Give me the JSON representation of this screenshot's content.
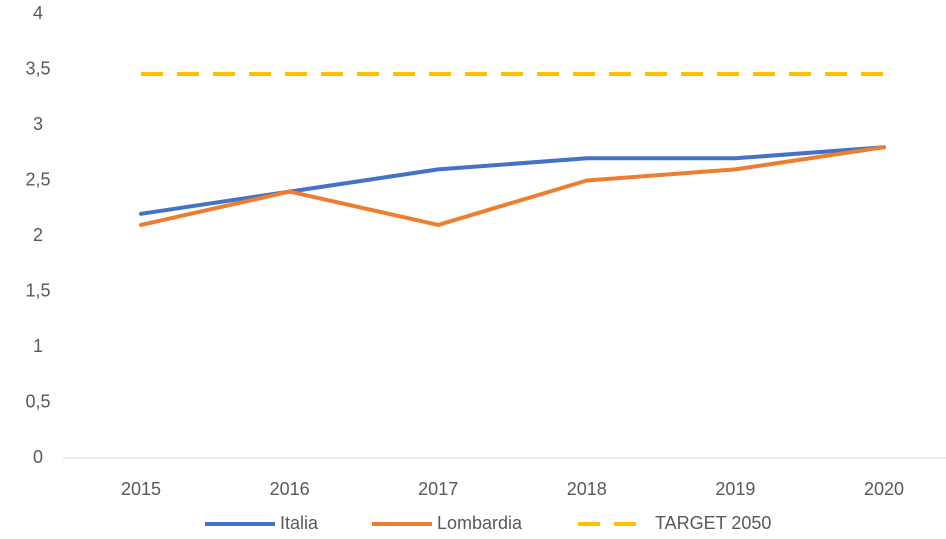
{
  "chart_data": {
    "type": "line",
    "categories": [
      "2015",
      "2016",
      "2017",
      "2018",
      "2019",
      "2020"
    ],
    "series": [
      {
        "name": "Italia",
        "color": "#4472c4",
        "values": [
          2.2,
          2.4,
          2.6,
          2.7,
          2.7,
          2.8
        ]
      },
      {
        "name": "Lombardia",
        "color": "#ed7d31",
        "values": [
          2.1,
          2.4,
          2.1,
          2.5,
          2.6,
          2.8
        ]
      },
      {
        "name": "TARGET 2050",
        "color": "#ffc000",
        "dashed": true,
        "values": [
          3.46,
          3.46,
          3.46,
          3.46,
          3.46,
          3.46
        ]
      }
    ],
    "ylim": [
      0,
      4
    ],
    "yticks": [
      0,
      {
        "value": 0.5,
        "label": "0,5"
      },
      1,
      {
        "value": 1.5,
        "label": "1,5"
      },
      2,
      {
        "value": 2.5,
        "label": "2,5"
      },
      3,
      {
        "value": 3.5,
        "label": "3,5"
      },
      4
    ],
    "grid": false,
    "legend": "bottom"
  }
}
